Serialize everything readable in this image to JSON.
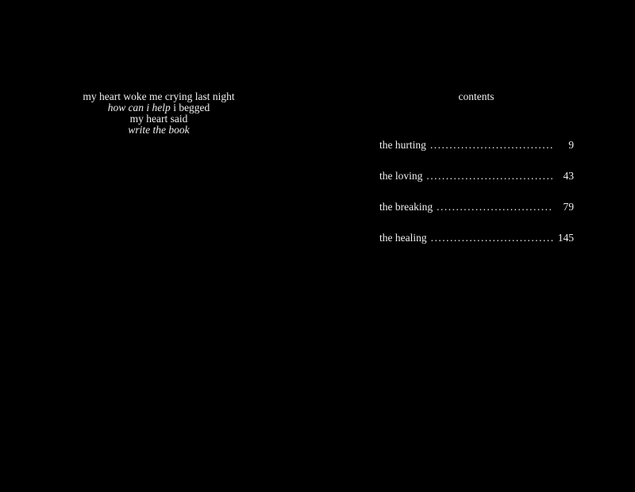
{
  "colors": {
    "background": "#000000",
    "text": "#f0f0f0"
  },
  "left_page": {
    "poem": {
      "line1": "my heart woke me crying last night",
      "line2_italic": "how can i help",
      "line2_regular": " i begged",
      "line3": "my heart said",
      "line4_italic": "write the book"
    }
  },
  "right_page": {
    "title": "contents",
    "toc": {
      "leader": "..............................................................................................",
      "entries": [
        {
          "label": "the hurting",
          "page": "9"
        },
        {
          "label": "the loving",
          "page": "43"
        },
        {
          "label": "the breaking",
          "page": "79"
        },
        {
          "label": "the healing",
          "page": "145"
        }
      ]
    }
  }
}
